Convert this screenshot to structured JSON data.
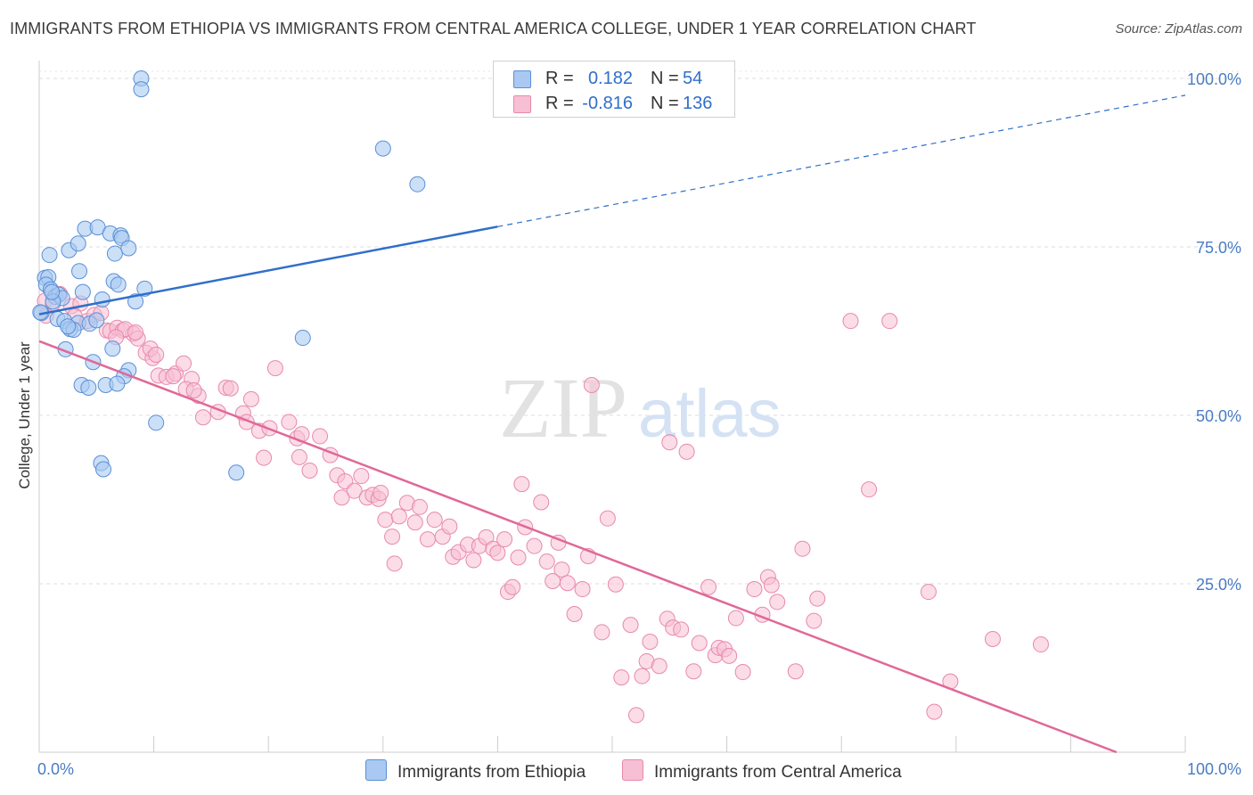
{
  "header": {
    "title": "IMMIGRANTS FROM ETHIOPIA VS IMMIGRANTS FROM CENTRAL AMERICA COLLEGE, UNDER 1 YEAR CORRELATION CHART",
    "source": "Source: ZipAtlas.com"
  },
  "watermark": {
    "zip": "ZIP",
    "atlas": "atlas"
  },
  "stats": {
    "r_label": "R =",
    "n_label": "N =",
    "ethiopia": {
      "r": "0.182",
      "n": "54"
    },
    "central_america": {
      "r": "-0.816",
      "n": "136"
    }
  },
  "legend": {
    "ethiopia": "Immigrants from Ethiopia",
    "central_america": "Immigrants from Central America"
  },
  "colors": {
    "ethiopia_fill": "#a9c9f2",
    "ethiopia_stroke": "#5b8fd6",
    "ethiopia_line": "#2f6fca",
    "central_fill": "#f7bfd3",
    "central_stroke": "#e889ac",
    "central_line": "#e06897",
    "tick_label": "#4a7cc4",
    "grid": "#dddddd"
  },
  "chart_data": {
    "type": "scatter",
    "title": "IMMIGRANTS FROM ETHIOPIA VS IMMIGRANTS FROM CENTRAL AMERICA COLLEGE, UNDER 1 YEAR CORRELATION CHART",
    "xlabel": "",
    "ylabel": "College, Under 1 year",
    "xlim": [
      0,
      100
    ],
    "ylim": [
      0,
      100
    ],
    "x_tick_labels": [
      "0.0%",
      "100.0%"
    ],
    "y_ticks": [
      25,
      50,
      75,
      100
    ],
    "y_tick_labels": [
      "25.0%",
      "50.0%",
      "75.0%",
      "100.0%"
    ],
    "grid": true,
    "legend_position": "bottom",
    "series": [
      {
        "name": "Immigrants from Ethiopia",
        "points": [
          [
            8.9,
            100.0
          ],
          [
            8.9,
            98.4
          ],
          [
            30.0,
            89.6
          ],
          [
            33.0,
            84.3
          ],
          [
            0.5,
            70.4
          ],
          [
            0.8,
            70.5
          ],
          [
            0.6,
            69.4
          ],
          [
            1.0,
            68.7
          ],
          [
            1.4,
            67.6
          ],
          [
            1.7,
            67.9
          ],
          [
            2.0,
            67.4
          ],
          [
            1.2,
            66.9
          ],
          [
            0.2,
            65.2
          ],
          [
            1.6,
            64.3
          ],
          [
            2.2,
            64.0
          ],
          [
            3.4,
            63.7
          ],
          [
            4.4,
            63.6
          ],
          [
            2.7,
            62.8
          ],
          [
            3.0,
            62.7
          ],
          [
            0.9,
            73.8
          ],
          [
            2.6,
            74.5
          ],
          [
            3.4,
            75.5
          ],
          [
            4.0,
            77.7
          ],
          [
            5.1,
            77.9
          ],
          [
            6.2,
            77.0
          ],
          [
            7.1,
            76.7
          ],
          [
            7.2,
            76.3
          ],
          [
            7.8,
            74.8
          ],
          [
            6.6,
            74.0
          ],
          [
            3.5,
            71.4
          ],
          [
            6.5,
            69.9
          ],
          [
            6.9,
            69.4
          ],
          [
            9.2,
            68.8
          ],
          [
            3.8,
            68.3
          ],
          [
            5.5,
            67.2
          ],
          [
            8.4,
            66.9
          ],
          [
            2.3,
            59.8
          ],
          [
            6.4,
            59.9
          ],
          [
            23.0,
            61.5
          ],
          [
            4.7,
            57.9
          ],
          [
            7.8,
            56.7
          ],
          [
            7.4,
            55.8
          ],
          [
            3.7,
            54.5
          ],
          [
            4.3,
            54.1
          ],
          [
            5.8,
            54.5
          ],
          [
            6.8,
            54.7
          ],
          [
            10.2,
            48.9
          ],
          [
            5.4,
            42.9
          ],
          [
            5.6,
            42.0
          ],
          [
            17.2,
            41.5
          ],
          [
            0.1,
            65.3
          ],
          [
            1.1,
            68.3
          ],
          [
            2.5,
            63.2
          ],
          [
            5.0,
            64.1
          ]
        ],
        "trendline": {
          "x": [
            0,
            40
          ],
          "y": [
            65.0,
            78.0
          ],
          "extended_to": [
            100,
            97.5
          ]
        }
      },
      {
        "name": "Immigrants from Central America",
        "points": [
          [
            0.5,
            67.0
          ],
          [
            1.8,
            68.0
          ],
          [
            2.8,
            66.2
          ],
          [
            1.2,
            66.6
          ],
          [
            0.6,
            64.8
          ],
          [
            3.6,
            66.6
          ],
          [
            3.1,
            64.7
          ],
          [
            4.2,
            64.0
          ],
          [
            4.8,
            64.9
          ],
          [
            5.4,
            65.2
          ],
          [
            5.9,
            62.6
          ],
          [
            6.2,
            62.5
          ],
          [
            6.8,
            63.0
          ],
          [
            7.3,
            62.6
          ],
          [
            8.2,
            62.1
          ],
          [
            7.5,
            62.8
          ],
          [
            6.7,
            61.6
          ],
          [
            8.6,
            61.4
          ],
          [
            8.4,
            62.3
          ],
          [
            9.3,
            59.3
          ],
          [
            9.9,
            58.5
          ],
          [
            9.7,
            59.9
          ],
          [
            10.2,
            59.0
          ],
          [
            10.4,
            55.9
          ],
          [
            11.1,
            55.7
          ],
          [
            11.9,
            56.2
          ],
          [
            12.6,
            57.7
          ],
          [
            11.7,
            55.8
          ],
          [
            13.3,
            55.4
          ],
          [
            12.8,
            53.9
          ],
          [
            13.9,
            52.9
          ],
          [
            13.5,
            53.7
          ],
          [
            14.3,
            49.7
          ],
          [
            15.6,
            50.5
          ],
          [
            16.3,
            54.1
          ],
          [
            16.7,
            54.0
          ],
          [
            17.8,
            50.3
          ],
          [
            18.5,
            52.4
          ],
          [
            18.1,
            49.0
          ],
          [
            19.2,
            47.7
          ],
          [
            19.6,
            43.7
          ],
          [
            20.1,
            48.1
          ],
          [
            20.6,
            57.0
          ],
          [
            21.8,
            49.0
          ],
          [
            22.5,
            46.6
          ],
          [
            22.9,
            47.2
          ],
          [
            22.7,
            43.8
          ],
          [
            23.6,
            41.8
          ],
          [
            24.5,
            46.9
          ],
          [
            25.4,
            44.1
          ],
          [
            26.0,
            41.1
          ],
          [
            26.4,
            37.8
          ],
          [
            26.7,
            40.2
          ],
          [
            27.5,
            38.8
          ],
          [
            28.1,
            41.0
          ],
          [
            28.6,
            37.8
          ],
          [
            29.1,
            38.2
          ],
          [
            29.6,
            37.6
          ],
          [
            29.8,
            38.5
          ],
          [
            30.2,
            34.5
          ],
          [
            30.8,
            32.0
          ],
          [
            31.0,
            28.0
          ],
          [
            31.4,
            35.0
          ],
          [
            32.1,
            37.0
          ],
          [
            32.8,
            34.1
          ],
          [
            33.2,
            36.4
          ],
          [
            33.9,
            31.6
          ],
          [
            34.5,
            34.5
          ],
          [
            35.2,
            32.0
          ],
          [
            35.8,
            33.5
          ],
          [
            36.1,
            29.0
          ],
          [
            36.6,
            29.7
          ],
          [
            37.4,
            30.8
          ],
          [
            37.9,
            28.5
          ],
          [
            38.4,
            30.6
          ],
          [
            39.0,
            31.9
          ],
          [
            39.6,
            30.2
          ],
          [
            40.0,
            29.6
          ],
          [
            40.6,
            31.6
          ],
          [
            40.9,
            23.8
          ],
          [
            41.3,
            24.5
          ],
          [
            41.8,
            28.9
          ],
          [
            42.4,
            33.4
          ],
          [
            42.1,
            39.8
          ],
          [
            43.2,
            30.6
          ],
          [
            43.8,
            37.1
          ],
          [
            44.3,
            28.3
          ],
          [
            44.8,
            25.4
          ],
          [
            45.3,
            31.1
          ],
          [
            45.6,
            27.1
          ],
          [
            46.1,
            25.1
          ],
          [
            46.7,
            20.5
          ],
          [
            47.4,
            24.2
          ],
          [
            47.9,
            29.1
          ],
          [
            48.2,
            54.5
          ],
          [
            49.1,
            17.8
          ],
          [
            49.6,
            34.7
          ],
          [
            50.3,
            24.9
          ],
          [
            50.8,
            11.1
          ],
          [
            51.6,
            18.9
          ],
          [
            52.1,
            5.5
          ],
          [
            52.6,
            11.3
          ],
          [
            53.0,
            13.5
          ],
          [
            53.3,
            16.4
          ],
          [
            54.1,
            12.8
          ],
          [
            54.8,
            19.8
          ],
          [
            55.3,
            18.5
          ],
          [
            55.0,
            46.0
          ],
          [
            56.0,
            18.2
          ],
          [
            56.5,
            44.6
          ],
          [
            57.1,
            12.0
          ],
          [
            57.6,
            16.2
          ],
          [
            58.4,
            24.5
          ],
          [
            59.0,
            14.4
          ],
          [
            59.3,
            15.5
          ],
          [
            59.8,
            15.3
          ],
          [
            60.2,
            14.3
          ],
          [
            60.8,
            19.9
          ],
          [
            61.4,
            11.9
          ],
          [
            62.4,
            24.2
          ],
          [
            63.1,
            20.4
          ],
          [
            63.6,
            26.0
          ],
          [
            63.9,
            24.8
          ],
          [
            64.4,
            22.3
          ],
          [
            66.0,
            12.0
          ],
          [
            66.6,
            30.2
          ],
          [
            67.6,
            19.5
          ],
          [
            67.9,
            22.8
          ],
          [
            70.8,
            64.0
          ],
          [
            74.2,
            64.0
          ],
          [
            72.4,
            39.0
          ],
          [
            77.6,
            23.8
          ],
          [
            78.1,
            6.0
          ],
          [
            79.5,
            10.5
          ],
          [
            83.2,
            16.8
          ],
          [
            87.4,
            16.0
          ]
        ],
        "trendline": {
          "x": [
            0,
            94
          ],
          "y": [
            61.0,
            0.0
          ]
        }
      }
    ]
  }
}
